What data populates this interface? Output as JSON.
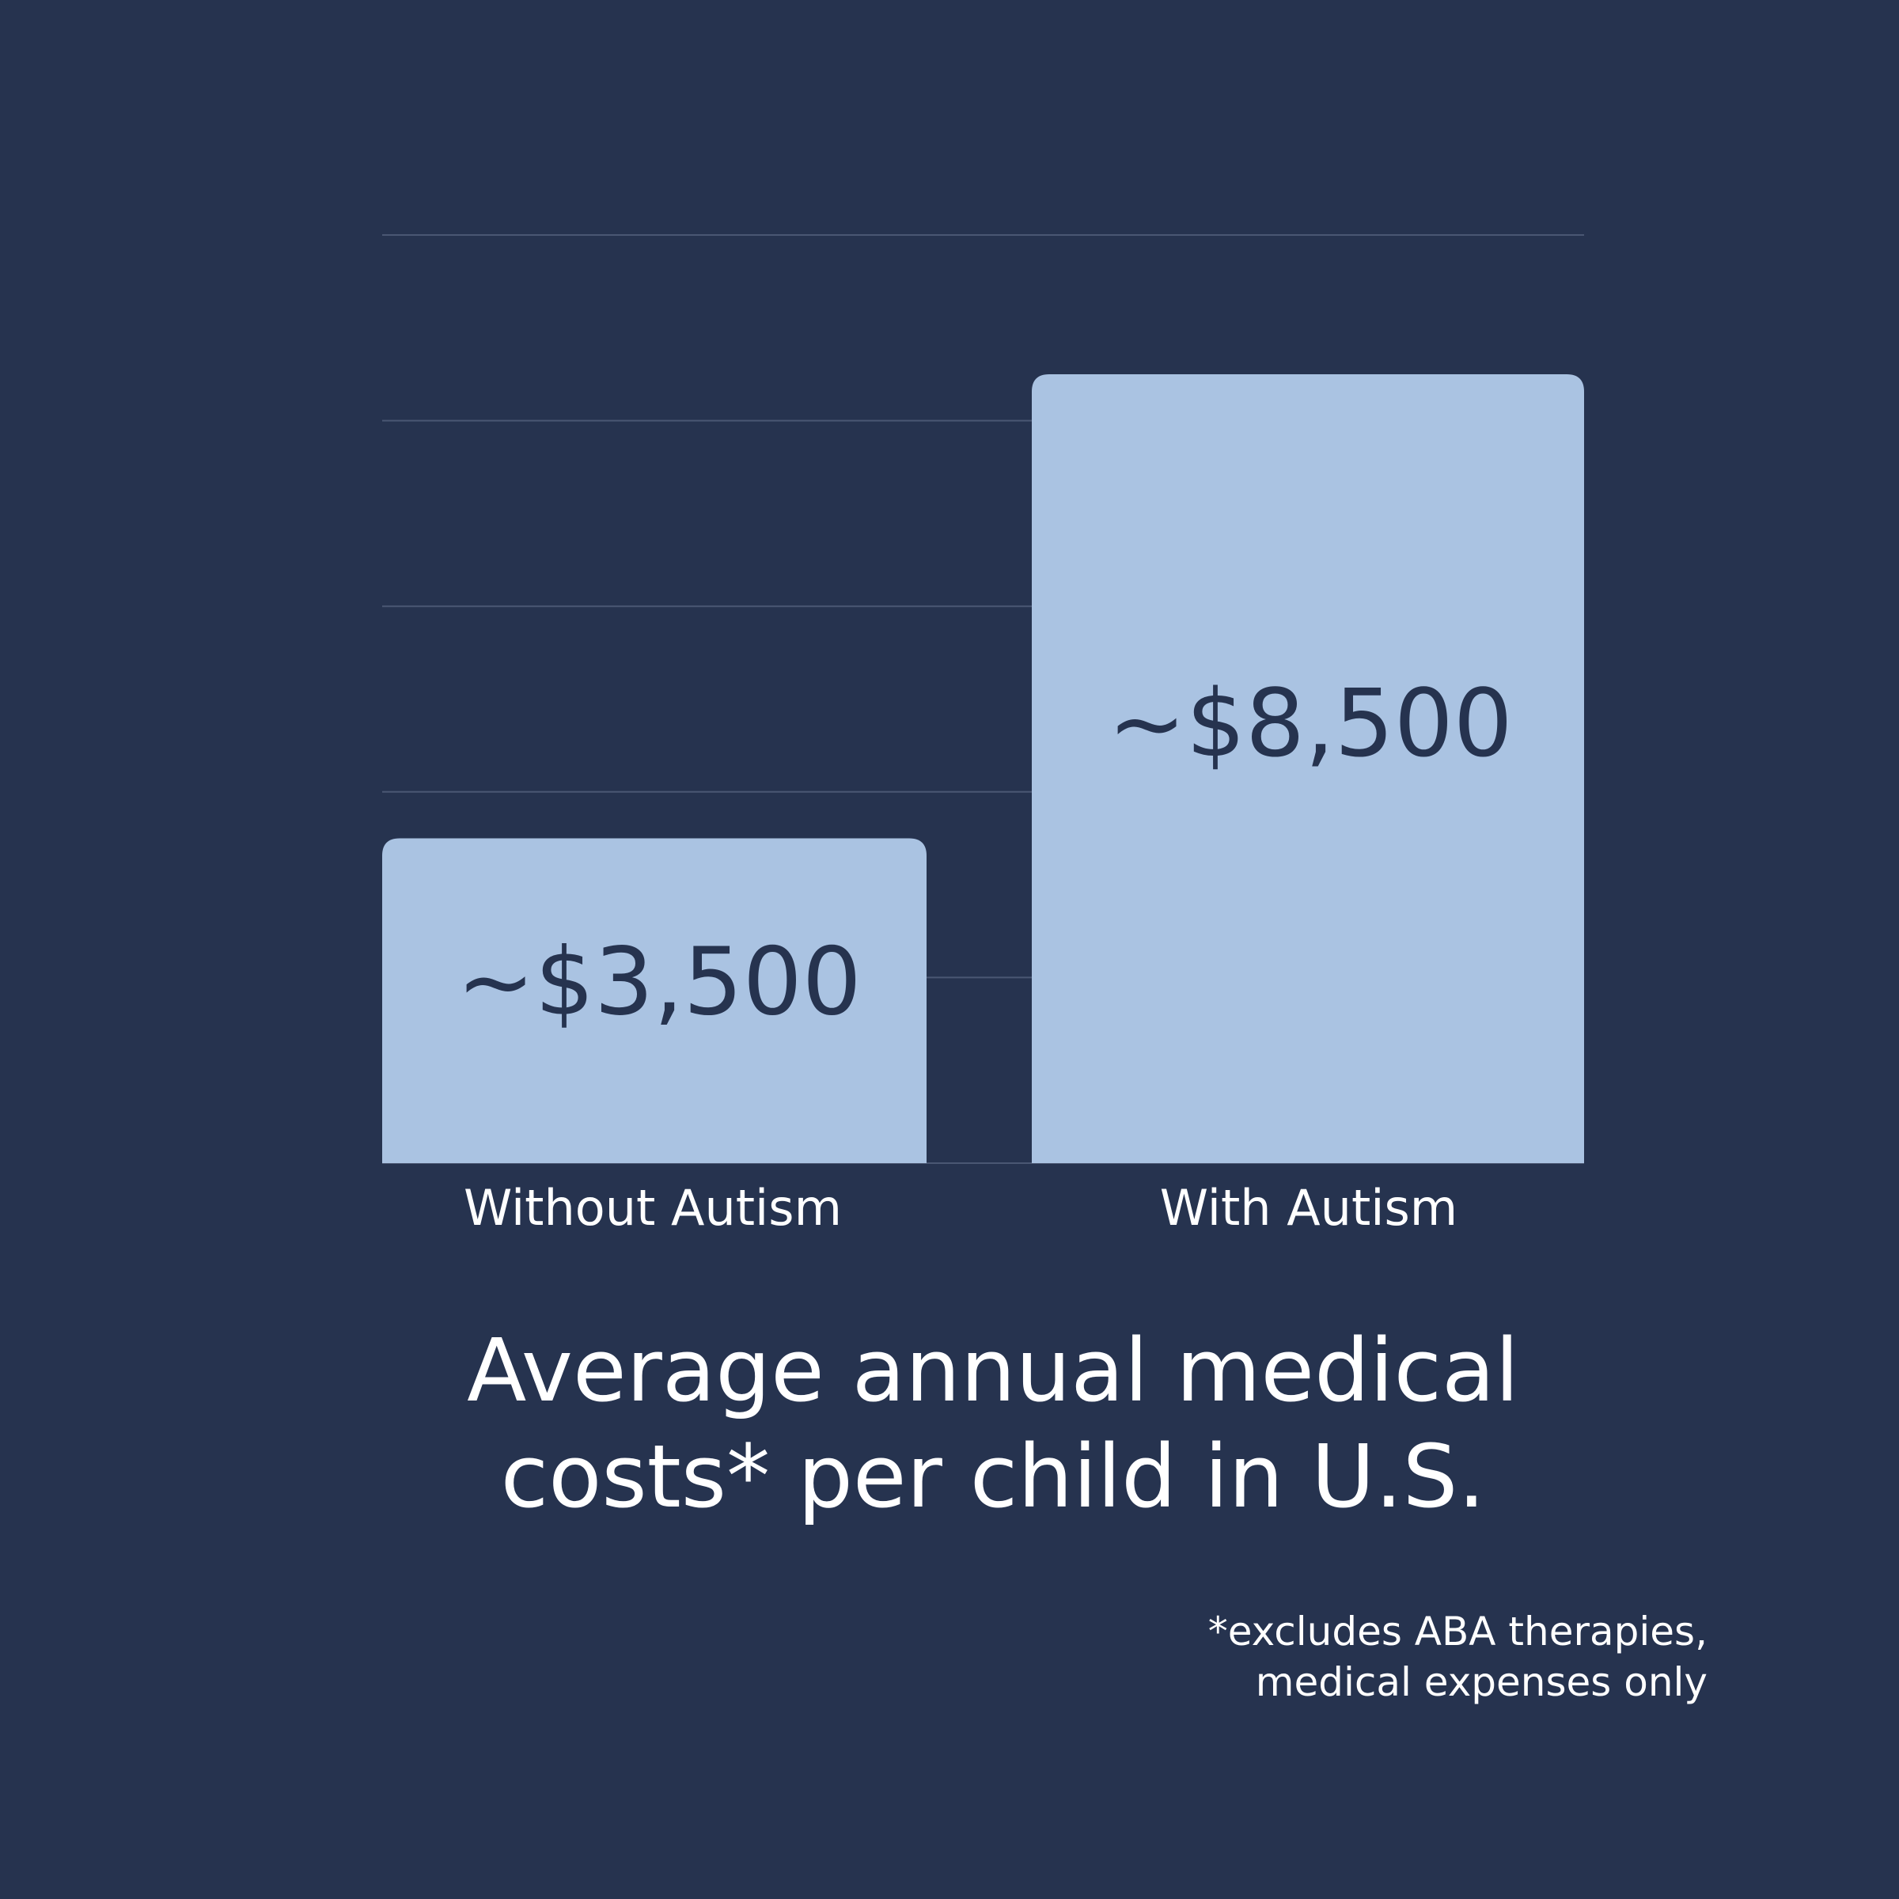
{
  "colors": {
    "background": "#26334f",
    "bar": "#aac3e2",
    "gridline": "#4a5773",
    "bar_label_text": "#26334f",
    "text": "#ffffff"
  },
  "chart_data": {
    "type": "bar",
    "categories": [
      "Without Autism",
      "With Autism"
    ],
    "values": [
      3500,
      8500
    ],
    "data_labels": [
      "~$3,500",
      "~$8,500"
    ],
    "title_lines": [
      "Average annual medical",
      "costs* per child in U.S."
    ],
    "xlabel": "",
    "ylabel": "",
    "ylim": [
      0,
      10000
    ],
    "grid": true,
    "legend": "none"
  },
  "footnote": {
    "lines": [
      "*excludes ABA therapies,",
      "medical expenses only"
    ]
  }
}
